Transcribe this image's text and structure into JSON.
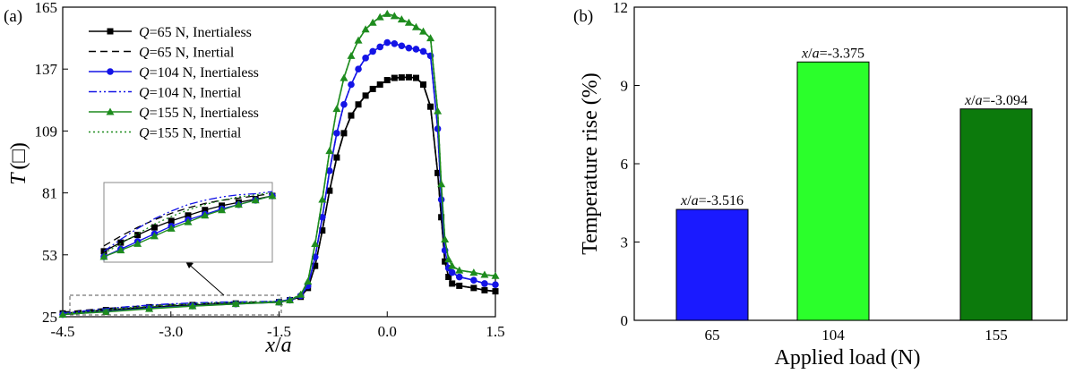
{
  "chart_data": [
    {
      "panel": "(a)",
      "type": "line",
      "xlabel_var": "x",
      "xlabel_sep": "/",
      "xlabel_den": "a",
      "ylabel_var": "T",
      "ylabel_unit": "(□)",
      "xlim": [
        -4.5,
        1.5
      ],
      "ylim": [
        25,
        165
      ],
      "xticks": [
        "-4.5",
        "-3.0",
        "-1.5",
        "0.0",
        "1.5"
      ],
      "yticks": [
        "25",
        "53",
        "81",
        "109",
        "137",
        "165"
      ],
      "inset_present": true,
      "series": [
        {
          "name": "Q=65 N, Inertialess",
          "q": "Q",
          "rest": "=65 N, Inertialess",
          "color": "#000000",
          "style": "solid",
          "marker": "square",
          "x": [
            -4.5,
            -4.2,
            -3.9,
            -3.6,
            -3.3,
            -3.0,
            -2.7,
            -2.4,
            -2.1,
            -1.8,
            -1.5,
            -1.35,
            -1.2,
            -1.1,
            -1.0,
            -0.9,
            -0.8,
            -0.7,
            -0.6,
            -0.5,
            -0.4,
            -0.3,
            -0.2,
            -0.1,
            0.0,
            0.1,
            0.2,
            0.3,
            0.4,
            0.5,
            0.6,
            0.7,
            0.75,
            0.8,
            0.85,
            0.9,
            1.0,
            1.2,
            1.35,
            1.5
          ],
          "y": [
            26.5,
            27.3,
            28.0,
            28.7,
            29.3,
            29.8,
            30.3,
            30.7,
            31.0,
            31.3,
            31.6,
            32.5,
            34,
            38,
            48,
            64,
            82,
            97,
            108,
            116,
            121,
            125,
            128,
            130,
            132,
            133,
            133.2,
            133.3,
            133,
            130,
            120,
            90,
            70,
            50,
            43,
            40,
            39,
            38,
            37,
            36.5
          ]
        },
        {
          "name": "Q=65 N, Inertial",
          "q": "Q",
          "rest": "=65 N, Inertial",
          "color": "#000000",
          "style": "dashed",
          "marker": "none",
          "x": [
            -4.5,
            -4.2,
            -3.9,
            -3.6,
            -3.3,
            -3.0,
            -2.7,
            -2.4,
            -2.1,
            -1.8,
            -1.5,
            -1.35,
            -1.2,
            -1.1,
            -1.0,
            -0.9,
            -0.8,
            -0.7,
            -0.6,
            -0.5,
            -0.4,
            -0.3,
            -0.2,
            -0.1,
            0.0,
            0.1,
            0.2,
            0.3,
            0.4,
            0.5,
            0.6,
            0.7,
            0.75,
            0.8,
            0.85,
            0.9,
            1.0,
            1.2,
            1.35,
            1.5
          ],
          "y": [
            27.0,
            27.9,
            28.7,
            29.4,
            30.0,
            30.5,
            30.9,
            31.2,
            31.4,
            31.6,
            31.8,
            32.6,
            34,
            38,
            48,
            64,
            82,
            97,
            108,
            116,
            121,
            125,
            128,
            130,
            132,
            133,
            133.2,
            133.3,
            133,
            130,
            120,
            90,
            70,
            50,
            43,
            40,
            39,
            38,
            37,
            36.5
          ]
        },
        {
          "name": "Q=104 N, Inertialess",
          "q": "Q",
          "rest": "=104 N, Inertialess",
          "color": "#1414e6",
          "style": "solid",
          "marker": "circle",
          "x": [
            -4.5,
            -4.2,
            -3.9,
            -3.6,
            -3.3,
            -3.0,
            -2.7,
            -2.4,
            -2.1,
            -1.8,
            -1.5,
            -1.35,
            -1.2,
            -1.1,
            -1.0,
            -0.9,
            -0.8,
            -0.7,
            -0.6,
            -0.5,
            -0.4,
            -0.3,
            -0.2,
            -0.1,
            0.0,
            0.1,
            0.2,
            0.3,
            0.4,
            0.5,
            0.6,
            0.7,
            0.75,
            0.8,
            0.85,
            0.9,
            1.0,
            1.2,
            1.35,
            1.5
          ],
          "y": [
            26.0,
            26.7,
            27.4,
            28.1,
            28.8,
            29.4,
            29.9,
            30.4,
            30.8,
            31.2,
            31.6,
            32.5,
            34.5,
            39,
            52,
            70,
            91,
            108,
            121,
            130,
            137,
            142,
            145,
            147,
            149,
            148.5,
            147.5,
            146.5,
            146,
            145,
            143,
            110,
            78,
            55,
            47,
            45,
            43,
            41.5,
            40,
            39.5
          ]
        },
        {
          "name": "Q=104 N, Inertial",
          "q": "Q",
          "rest": "=104 N, Inertial",
          "color": "#1414e6",
          "style": "dashdotdot",
          "marker": "none",
          "x": [
            -4.5,
            -4.2,
            -3.9,
            -3.6,
            -3.3,
            -3.0,
            -2.7,
            -2.4,
            -2.1,
            -1.8,
            -1.5,
            -1.35,
            -1.2,
            -1.1,
            -1.0,
            -0.9,
            -0.8,
            -0.7,
            -0.6,
            -0.5,
            -0.4,
            -0.3,
            -0.2,
            -0.1,
            0.0,
            0.1,
            0.2,
            0.3,
            0.4,
            0.5,
            0.6,
            0.7,
            0.75,
            0.8,
            0.85,
            0.9,
            1.0,
            1.2,
            1.35,
            1.5
          ],
          "y": [
            26.5,
            27.6,
            28.6,
            29.5,
            30.2,
            30.8,
            31.2,
            31.5,
            31.7,
            31.8,
            32.0,
            32.7,
            34.6,
            39,
            52,
            70,
            91,
            108,
            121,
            130,
            137,
            142,
            145,
            147,
            149,
            148.5,
            147.5,
            146.5,
            146,
            145,
            143,
            110,
            78,
            55,
            47,
            45,
            43,
            41.5,
            40,
            39.5
          ]
        },
        {
          "name": "Q=155 N, Inertialess",
          "q": "Q",
          "rest": "=155 N, Inertialess",
          "color": "#1e8c1e",
          "style": "solid",
          "marker": "triangle",
          "x": [
            -4.5,
            -4.2,
            -3.9,
            -3.6,
            -3.3,
            -3.0,
            -2.7,
            -2.4,
            -2.1,
            -1.8,
            -1.5,
            -1.35,
            -1.2,
            -1.1,
            -1.0,
            -0.9,
            -0.8,
            -0.7,
            -0.6,
            -0.5,
            -0.4,
            -0.3,
            -0.2,
            -0.1,
            0.0,
            0.1,
            0.2,
            0.3,
            0.4,
            0.5,
            0.6,
            0.7,
            0.75,
            0.8,
            0.85,
            0.9,
            1.0,
            1.2,
            1.35,
            1.5
          ],
          "y": [
            26.0,
            26.6,
            27.2,
            27.9,
            28.6,
            29.2,
            29.8,
            30.3,
            30.8,
            31.2,
            31.6,
            32.5,
            35,
            41,
            58,
            78,
            100,
            119,
            133,
            143,
            150,
            155,
            158,
            160.5,
            162,
            161,
            159.5,
            158,
            156,
            154,
            151,
            118,
            85,
            60,
            51,
            48,
            46,
            45,
            44,
            43.5
          ]
        },
        {
          "name": "Q=155 N, Inertial",
          "q": "Q",
          "rest": "=155 N, Inertial",
          "color": "#1e8c1e",
          "style": "dotted",
          "marker": "none",
          "x": [
            -4.5,
            -4.2,
            -3.9,
            -3.6,
            -3.3,
            -3.0,
            -2.7,
            -2.4,
            -2.1,
            -1.8,
            -1.5,
            -1.35,
            -1.2,
            -1.1,
            -1.0,
            -0.9,
            -0.8,
            -0.7,
            -0.6,
            -0.5,
            -0.4,
            -0.3,
            -0.2,
            -0.1,
            0.0,
            0.1,
            0.2,
            0.3,
            0.4,
            0.5,
            0.6,
            0.7,
            0.75,
            0.8,
            0.85,
            0.9,
            1.0,
            1.2,
            1.35,
            1.5
          ],
          "y": [
            26.3,
            27.2,
            28.1,
            29.0,
            29.7,
            30.3,
            30.8,
            31.2,
            31.5,
            31.7,
            31.9,
            32.6,
            35,
            41,
            58,
            78,
            100,
            119,
            133,
            143,
            150,
            155,
            158,
            160.5,
            162,
            161,
            159.5,
            158,
            156,
            154,
            151,
            118,
            85,
            60,
            51,
            48,
            46,
            45,
            44,
            43.5
          ]
        }
      ]
    },
    {
      "panel": "(b)",
      "type": "bar",
      "xlabel": "Applied load",
      "xlabel_unit": "(N)",
      "ylabel": "Temperature rise (%)",
      "ylim": [
        0,
        12
      ],
      "yticks": [
        "0",
        "3",
        "6",
        "9",
        "12"
      ],
      "categories": [
        "65",
        "104",
        "155"
      ],
      "values": [
        4.25,
        9.9,
        8.1
      ],
      "colors": [
        "#1a1aff",
        "#2bff2b",
        "#0c7a0c"
      ],
      "bar_labels": [
        {
          "var": "x",
          "sep": "/",
          "den": "a",
          "val": "=-3.516"
        },
        {
          "var": "x",
          "sep": "/",
          "den": "a",
          "val": "=-3.375"
        },
        {
          "var": "x",
          "sep": "/",
          "den": "a",
          "val": "=-3.094"
        }
      ]
    }
  ]
}
